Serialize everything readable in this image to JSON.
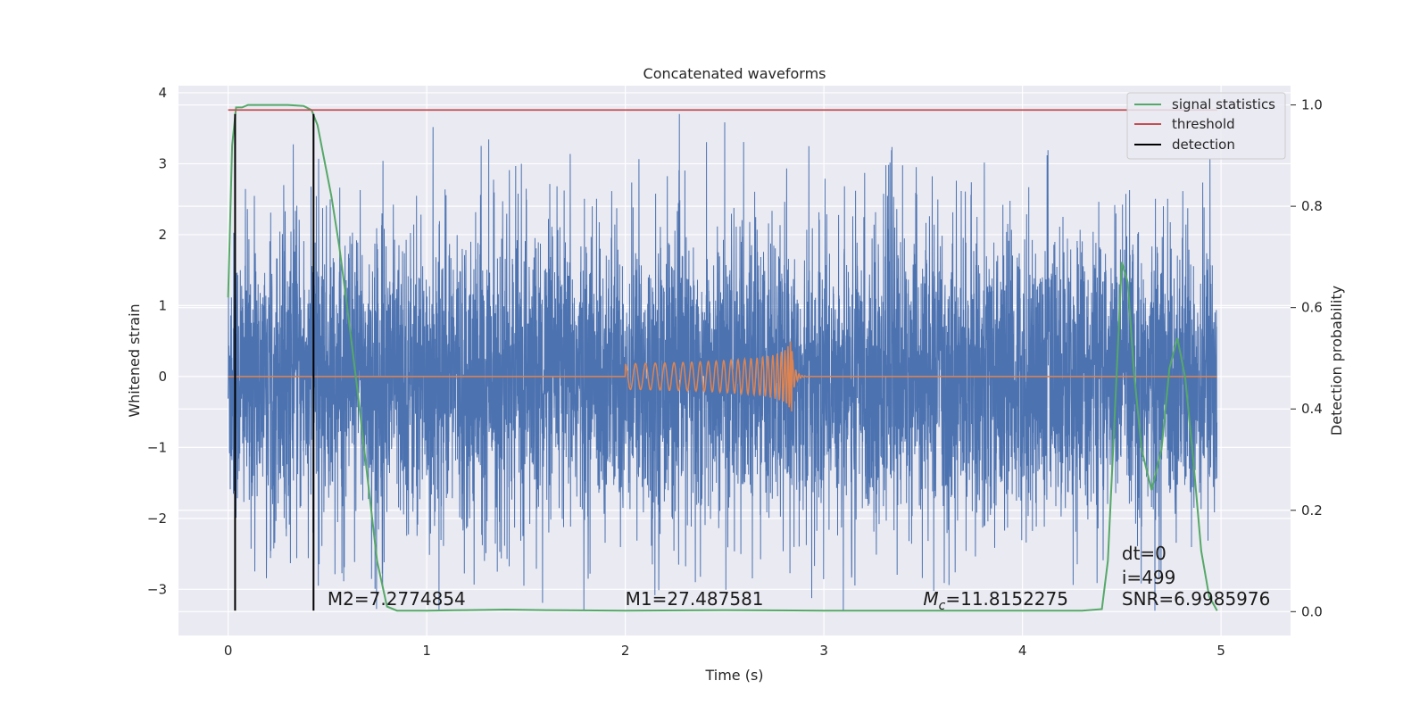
{
  "chart_data": {
    "type": "line",
    "title": "Concatenated waveforms",
    "xlabel": "Time (s)",
    "ylabel": "Whitened strain",
    "y2label": "Detection probability",
    "xlim": [
      -0.25,
      5.35
    ],
    "ylim": [
      -3.65,
      4.1
    ],
    "y2lim": [
      -0.047,
      1.038
    ],
    "xticks": [
      "0",
      "1",
      "2",
      "3",
      "4",
      "5"
    ],
    "yticks": [
      "−3",
      "−2",
      "−1",
      "0",
      "1",
      "2",
      "3",
      "4"
    ],
    "y2ticks": [
      "0.0",
      "0.2",
      "0.4",
      "0.6",
      "0.8",
      "1.0"
    ],
    "grid": true,
    "legend_position": "top-right",
    "colors": {
      "strain": "#4c72b0",
      "template": "#dd8452",
      "signal_statistics": "#55a868",
      "threshold": "#c44e52",
      "detection": "#000000",
      "background": "#eaeaf2"
    },
    "series": [
      {
        "name": "signal statistics",
        "axis": "right",
        "x": [
          0.0,
          0.02,
          0.04,
          0.07,
          0.1,
          0.2,
          0.3,
          0.38,
          0.42,
          0.45,
          0.48,
          0.52,
          0.56,
          0.6,
          0.65,
          0.7,
          0.75,
          0.8,
          0.85,
          1.0,
          1.2,
          1.4,
          1.6,
          2.0,
          2.5,
          3.0,
          3.5,
          4.0,
          4.3,
          4.4,
          4.43,
          4.46,
          4.5,
          4.53,
          4.56,
          4.6,
          4.65,
          4.7,
          4.74,
          4.78,
          4.82,
          4.86,
          4.9,
          4.94,
          4.98
        ],
        "y": [
          0.62,
          0.92,
          0.995,
          0.995,
          1.0,
          1.0,
          1.0,
          0.998,
          0.99,
          0.96,
          0.9,
          0.82,
          0.72,
          0.6,
          0.44,
          0.27,
          0.1,
          0.01,
          0.002,
          0.002,
          0.003,
          0.004,
          0.003,
          0.002,
          0.003,
          0.002,
          0.002,
          0.002,
          0.002,
          0.005,
          0.1,
          0.35,
          0.69,
          0.65,
          0.48,
          0.32,
          0.24,
          0.32,
          0.48,
          0.54,
          0.46,
          0.3,
          0.12,
          0.03,
          0.002
        ]
      },
      {
        "name": "threshold",
        "axis": "right",
        "x": [
          0.0,
          4.98
        ],
        "y": [
          0.99,
          0.99
        ]
      },
      {
        "name": "detection",
        "axis": "left",
        "x": [
          0.035,
          0.43
        ],
        "y": [
          -3.3,
          3.7
        ]
      }
    ],
    "annotations": [
      {
        "text": "M2=7.2774854",
        "x": 0.5,
        "y": -3.22
      },
      {
        "text": "M1=27.487581",
        "x": 2.0,
        "y": -3.22
      },
      {
        "text": "=11.8152275",
        "math": "M",
        "sub": "c",
        "x": 3.5,
        "y": -3.22
      },
      {
        "text": "dt=0",
        "x": 4.5,
        "y": -2.58
      },
      {
        "text": "i=499",
        "x": 4.5,
        "y": -2.92
      },
      {
        "text": "SNR=6.9985976",
        "x": 4.5,
        "y": -3.22
      }
    ]
  }
}
